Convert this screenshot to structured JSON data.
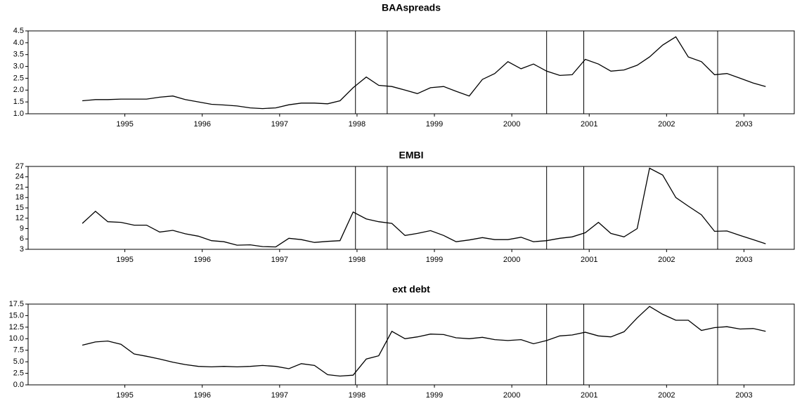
{
  "chart_data": [
    {
      "type": "line",
      "title": "BAAspreads",
      "x": [
        1994.95,
        1995.12,
        1995.28,
        1995.45,
        1995.62,
        1995.78,
        1995.95,
        1996.12,
        1996.28,
        1996.45,
        1996.62,
        1996.78,
        1996.95,
        1997.12,
        1997.28,
        1997.45,
        1997.62,
        1997.78,
        1997.95,
        1998.12,
        1998.28,
        1998.45,
        1998.62,
        1998.78,
        1998.95,
        1999.12,
        1999.28,
        1999.45,
        1999.62,
        1999.78,
        1999.95,
        2000.12,
        2000.28,
        2000.45,
        2000.62,
        2000.78,
        2000.95,
        2001.12,
        2001.28,
        2001.45,
        2001.62,
        2001.78,
        2001.95,
        2002.12,
        2002.28,
        2002.45,
        2002.62,
        2002.78,
        2002.95,
        2003.12,
        2003.28,
        2003.45,
        2003.62,
        2003.78
      ],
      "values": [
        1.55,
        1.6,
        1.6,
        1.62,
        1.62,
        1.62,
        1.7,
        1.75,
        1.6,
        1.5,
        1.4,
        1.37,
        1.33,
        1.25,
        1.22,
        1.25,
        1.38,
        1.45,
        1.45,
        1.42,
        1.55,
        2.1,
        2.55,
        2.2,
        2.15,
        2.0,
        1.85,
        2.1,
        2.15,
        1.95,
        1.75,
        2.45,
        2.7,
        3.2,
        2.9,
        3.1,
        2.8,
        2.62,
        2.65,
        3.3,
        3.1,
        2.8,
        2.85,
        3.05,
        3.4,
        3.9,
        4.25,
        3.4,
        3.2,
        2.65,
        2.7,
        2.5,
        2.3,
        2.15
      ],
      "color": "#000000",
      "xlim": [
        1994.25,
        2004.15
      ],
      "xticks": [
        {
          "value": 1995.5,
          "label": "1995"
        },
        {
          "value": 1996.5,
          "label": "1996"
        },
        {
          "value": 1997.5,
          "label": "1997"
        },
        {
          "value": 1998.5,
          "label": "1998"
        },
        {
          "value": 1999.5,
          "label": "1999"
        },
        {
          "value": 2000.5,
          "label": "2000"
        },
        {
          "value": 2001.5,
          "label": "2001"
        },
        {
          "value": 2002.5,
          "label": "2002"
        },
        {
          "value": 2003.5,
          "label": "2003"
        }
      ],
      "ylim": [
        1.0,
        4.5
      ],
      "yticks": [
        {
          "value": 1,
          "label": "1.0"
        },
        1.5,
        {
          "value": 2,
          "label": "2.0"
        },
        2.5,
        {
          "value": 3,
          "label": "3.0"
        },
        3.5,
        {
          "value": 4,
          "label": "4.0"
        },
        4.5
      ],
      "vlines": [
        1998.48,
        1998.89,
        2000.95,
        2001.43,
        2003.16
      ]
    },
    {
      "type": "line",
      "title": "EMBI",
      "x": [
        1994.95,
        1995.12,
        1995.28,
        1995.45,
        1995.62,
        1995.78,
        1995.95,
        1996.12,
        1996.28,
        1996.45,
        1996.62,
        1996.78,
        1996.95,
        1997.12,
        1997.28,
        1997.45,
        1997.62,
        1997.78,
        1997.95,
        1998.12,
        1998.28,
        1998.45,
        1998.62,
        1998.78,
        1998.95,
        1999.12,
        1999.28,
        1999.45,
        1999.62,
        1999.78,
        1999.95,
        2000.12,
        2000.28,
        2000.45,
        2000.62,
        2000.78,
        2000.95,
        2001.12,
        2001.28,
        2001.45,
        2001.62,
        2001.78,
        2001.95,
        2002.12,
        2002.28,
        2002.45,
        2002.62,
        2002.78,
        2002.95,
        2003.12,
        2003.28,
        2003.45,
        2003.62,
        2003.78
      ],
      "values": [
        10.5,
        14.0,
        11.0,
        10.8,
        10.0,
        10.0,
        8.0,
        8.5,
        7.5,
        6.8,
        5.5,
        5.2,
        4.2,
        4.3,
        3.8,
        3.7,
        6.2,
        5.8,
        5.0,
        5.3,
        5.5,
        13.8,
        11.8,
        11.0,
        10.5,
        7.0,
        7.6,
        8.4,
        7.0,
        5.2,
        5.7,
        6.4,
        5.8,
        5.8,
        6.5,
        5.2,
        5.5,
        6.2,
        6.6,
        7.8,
        10.8,
        7.6,
        6.6,
        9.0,
        26.5,
        24.5,
        18.0,
        15.5,
        13.0,
        8.2,
        8.3,
        7.0,
        5.8,
        4.6
      ],
      "color": "#000000",
      "xlim": [
        1994.25,
        2004.15
      ],
      "xticks": [
        {
          "value": 1995.5,
          "label": "1995"
        },
        {
          "value": 1996.5,
          "label": "1996"
        },
        {
          "value": 1997.5,
          "label": "1997"
        },
        {
          "value": 1998.5,
          "label": "1998"
        },
        {
          "value": 1999.5,
          "label": "1999"
        },
        {
          "value": 2000.5,
          "label": "2000"
        },
        {
          "value": 2001.5,
          "label": "2001"
        },
        {
          "value": 2002.5,
          "label": "2002"
        },
        {
          "value": 2003.5,
          "label": "2003"
        }
      ],
      "ylim": [
        3,
        27
      ],
      "yticks": [
        3,
        6,
        9,
        12,
        15,
        18,
        21,
        24,
        27
      ],
      "vlines": [
        1998.48,
        1998.89,
        2000.95,
        2001.43,
        2003.16
      ]
    },
    {
      "type": "line",
      "title": "ext debt",
      "x": [
        1994.95,
        1995.12,
        1995.28,
        1995.45,
        1995.62,
        1995.78,
        1995.95,
        1996.12,
        1996.28,
        1996.45,
        1996.62,
        1996.78,
        1996.95,
        1997.12,
        1997.28,
        1997.45,
        1997.62,
        1997.78,
        1997.95,
        1998.12,
        1998.28,
        1998.45,
        1998.62,
        1998.78,
        1998.95,
        1999.12,
        1999.28,
        1999.45,
        1999.62,
        1999.78,
        1999.95,
        2000.12,
        2000.28,
        2000.45,
        2000.62,
        2000.78,
        2000.95,
        2001.12,
        2001.28,
        2001.45,
        2001.62,
        2001.78,
        2001.95,
        2002.12,
        2002.28,
        2002.45,
        2002.62,
        2002.78,
        2002.95,
        2003.12,
        2003.28,
        2003.45,
        2003.62,
        2003.78
      ],
      "values": [
        8.6,
        9.3,
        9.5,
        8.8,
        6.7,
        6.2,
        5.6,
        4.9,
        4.4,
        4.0,
        3.9,
        4.0,
        3.9,
        4.0,
        4.2,
        4.0,
        3.5,
        4.6,
        4.2,
        2.2,
        1.9,
        2.1,
        5.6,
        6.3,
        11.6,
        10.0,
        10.4,
        11.0,
        10.9,
        10.2,
        10.0,
        10.3,
        9.8,
        9.6,
        9.8,
        8.9,
        9.6,
        10.6,
        10.8,
        11.4,
        10.6,
        10.4,
        11.5,
        14.5,
        17.0,
        15.3,
        14.0,
        14.0,
        11.8,
        12.4,
        12.6,
        12.1,
        12.2,
        11.6
      ],
      "color": "#000000",
      "xlim": [
        1994.25,
        2004.15
      ],
      "xticks": [
        {
          "value": 1995.5,
          "label": "1995"
        },
        {
          "value": 1996.5,
          "label": "1996"
        },
        {
          "value": 1997.5,
          "label": "1997"
        },
        {
          "value": 1998.5,
          "label": "1998"
        },
        {
          "value": 1999.5,
          "label": "1999"
        },
        {
          "value": 2000.5,
          "label": "2000"
        },
        {
          "value": 2001.5,
          "label": "2001"
        },
        {
          "value": 2002.5,
          "label": "2002"
        },
        {
          "value": 2003.5,
          "label": "2003"
        }
      ],
      "ylim": [
        0,
        17.5
      ],
      "yticks": [
        {
          "value": 0,
          "label": "0.0"
        },
        2.5,
        {
          "value": 5,
          "label": "5.0"
        },
        7.5,
        {
          "value": 10,
          "label": "10.0"
        },
        12.5,
        {
          "value": 15,
          "label": "15.0"
        },
        17.5
      ],
      "vlines": [
        1998.48,
        1998.89,
        2000.95,
        2001.43,
        2003.16
      ]
    }
  ]
}
